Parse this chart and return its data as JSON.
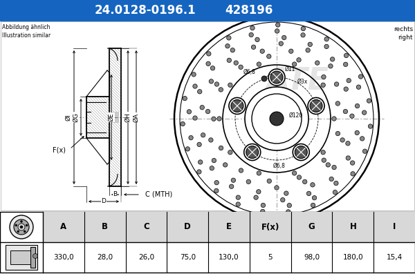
{
  "title_part_number": "24.0128-0196.1",
  "title_ref_number": "428196",
  "title_bg_color": "#1565C0",
  "title_text_color": "#FFFFFF",
  "note_left": "Abbildung ähnlich\nIllustration similar",
  "note_right": "rechts\nright",
  "table_headers": [
    "A",
    "B",
    "C",
    "D",
    "E",
    "F(x)",
    "G",
    "H",
    "I"
  ],
  "table_values": [
    "330,0",
    "28,0",
    "26,0",
    "75,0",
    "130,0",
    "5",
    "98,0",
    "180,0",
    "15,4"
  ],
  "bg_color": "#FFFFFF",
  "line_color": "#000000",
  "table_header_bg": "#D8D8D8",
  "dim_line_color": "#000000"
}
